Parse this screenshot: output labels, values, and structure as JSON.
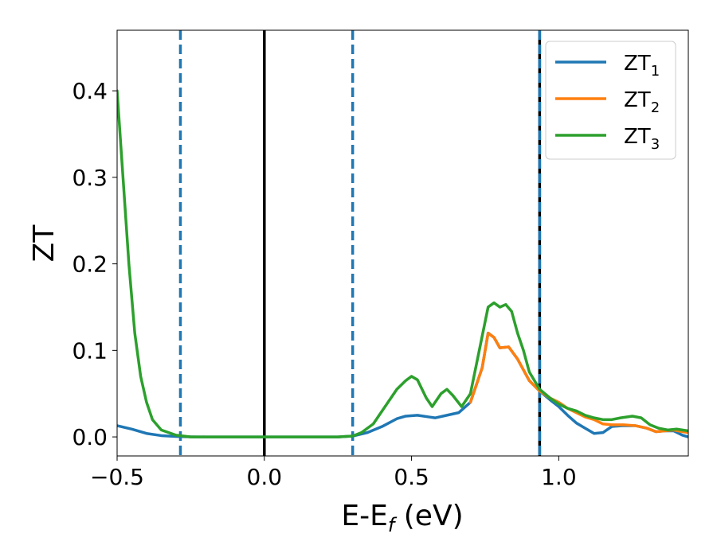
{
  "chart_data": {
    "type": "line",
    "xlabel": {
      "main": "E-E",
      "sub": "f",
      "tail": " (eV)"
    },
    "ylabel": "ZT",
    "xlim": [
      -0.5,
      1.44
    ],
    "ylim": [
      -0.022,
      0.47
    ],
    "x_ticks": [
      {
        "value": -0.5,
        "label": "−0.5"
      },
      {
        "value": 0.0,
        "label": "0.0"
      },
      {
        "value": 0.5,
        "label": "0.5"
      },
      {
        "value": 1.0,
        "label": "1.0"
      }
    ],
    "y_ticks": [
      {
        "value": 0.0,
        "label": "0.0"
      },
      {
        "value": 0.1,
        "label": "0.1"
      },
      {
        "value": 0.2,
        "label": "0.2"
      },
      {
        "value": 0.3,
        "label": "0.3"
      },
      {
        "value": 0.4,
        "label": "0.4"
      }
    ],
    "grid": false,
    "legend_position": "top-right",
    "vlines": [
      {
        "x": -0.285,
        "style": "dashed",
        "color": "#1f77b4"
      },
      {
        "x": 0.0,
        "style": "solid",
        "color": "#000000"
      },
      {
        "x": 0.3,
        "style": "dashed",
        "color": "#1f77b4"
      },
      {
        "x": 0.935,
        "style": "solid",
        "color": "#000000"
      },
      {
        "x": 0.935,
        "style": "dashed",
        "color": "#1f77b4"
      }
    ],
    "series": [
      {
        "name": "ZT",
        "sub": "1",
        "color": "#1f77b4",
        "points": [
          [
            -0.5,
            0.013
          ],
          [
            -0.45,
            0.009
          ],
          [
            -0.4,
            0.004
          ],
          [
            -0.35,
            0.0015
          ],
          [
            -0.3,
            0.0005
          ],
          [
            -0.25,
            0.0001
          ],
          [
            -0.2,
            0.0
          ],
          [
            0.0,
            0.0
          ],
          [
            0.25,
            0.0
          ],
          [
            0.3,
            0.001
          ],
          [
            0.35,
            0.005
          ],
          [
            0.4,
            0.012
          ],
          [
            0.45,
            0.021
          ],
          [
            0.48,
            0.024
          ],
          [
            0.52,
            0.025
          ],
          [
            0.56,
            0.023
          ],
          [
            0.58,
            0.022
          ],
          [
            0.62,
            0.025
          ],
          [
            0.66,
            0.028
          ],
          [
            0.7,
            0.04
          ],
          [
            0.74,
            0.08
          ],
          [
            0.76,
            0.12
          ],
          [
            0.78,
            0.115
          ],
          [
            0.8,
            0.103
          ],
          [
            0.83,
            0.104
          ],
          [
            0.86,
            0.09
          ],
          [
            0.9,
            0.065
          ],
          [
            0.935,
            0.053
          ],
          [
            0.97,
            0.043
          ],
          [
            1.0,
            0.035
          ],
          [
            1.03,
            0.025
          ],
          [
            1.06,
            0.016
          ],
          [
            1.09,
            0.01
          ],
          [
            1.12,
            0.004
          ],
          [
            1.15,
            0.005
          ],
          [
            1.18,
            0.012
          ],
          [
            1.22,
            0.013
          ],
          [
            1.26,
            0.013
          ],
          [
            1.3,
            0.01
          ],
          [
            1.33,
            0.006
          ],
          [
            1.36,
            0.007
          ],
          [
            1.39,
            0.007
          ],
          [
            1.42,
            0.002
          ],
          [
            1.44,
            0.0
          ]
        ]
      },
      {
        "name": "ZT",
        "sub": "2",
        "color": "#ff7f0e",
        "points": [
          [
            0.7,
            0.04
          ],
          [
            0.74,
            0.08
          ],
          [
            0.76,
            0.12
          ],
          [
            0.78,
            0.115
          ],
          [
            0.8,
            0.103
          ],
          [
            0.83,
            0.104
          ],
          [
            0.86,
            0.09
          ],
          [
            0.9,
            0.065
          ],
          [
            0.935,
            0.053
          ],
          [
            0.97,
            0.045
          ],
          [
            1.0,
            0.04
          ],
          [
            1.03,
            0.033
          ],
          [
            1.06,
            0.028
          ],
          [
            1.09,
            0.023
          ],
          [
            1.12,
            0.02
          ],
          [
            1.15,
            0.015
          ],
          [
            1.18,
            0.014
          ],
          [
            1.22,
            0.014
          ],
          [
            1.26,
            0.013
          ],
          [
            1.3,
            0.01
          ],
          [
            1.33,
            0.006
          ],
          [
            1.36,
            0.007
          ],
          [
            1.39,
            0.008
          ],
          [
            1.42,
            0.006
          ],
          [
            1.44,
            0.005
          ]
        ]
      },
      {
        "name": "ZT",
        "sub": "3",
        "color": "#2ca02c",
        "points": [
          [
            -0.5,
            0.4
          ],
          [
            -0.48,
            0.3
          ],
          [
            -0.46,
            0.2
          ],
          [
            -0.44,
            0.12
          ],
          [
            -0.42,
            0.07
          ],
          [
            -0.4,
            0.04
          ],
          [
            -0.38,
            0.02
          ],
          [
            -0.35,
            0.008
          ],
          [
            -0.3,
            0.002
          ],
          [
            -0.25,
            0.0
          ],
          [
            0.0,
            0.0
          ],
          [
            0.25,
            0.0
          ],
          [
            0.3,
            0.001
          ],
          [
            0.33,
            0.005
          ],
          [
            0.37,
            0.015
          ],
          [
            0.41,
            0.035
          ],
          [
            0.45,
            0.055
          ],
          [
            0.48,
            0.065
          ],
          [
            0.5,
            0.07
          ],
          [
            0.52,
            0.066
          ],
          [
            0.55,
            0.045
          ],
          [
            0.57,
            0.035
          ],
          [
            0.6,
            0.05
          ],
          [
            0.62,
            0.055
          ],
          [
            0.64,
            0.048
          ],
          [
            0.67,
            0.035
          ],
          [
            0.7,
            0.05
          ],
          [
            0.73,
            0.1
          ],
          [
            0.76,
            0.15
          ],
          [
            0.78,
            0.155
          ],
          [
            0.8,
            0.15
          ],
          [
            0.82,
            0.153
          ],
          [
            0.84,
            0.145
          ],
          [
            0.86,
            0.12
          ],
          [
            0.88,
            0.1
          ],
          [
            0.9,
            0.075
          ],
          [
            0.935,
            0.055
          ],
          [
            0.97,
            0.045
          ],
          [
            1.0,
            0.038
          ],
          [
            1.03,
            0.033
          ],
          [
            1.06,
            0.03
          ],
          [
            1.09,
            0.025
          ],
          [
            1.12,
            0.022
          ],
          [
            1.15,
            0.02
          ],
          [
            1.18,
            0.02
          ],
          [
            1.21,
            0.022
          ],
          [
            1.25,
            0.024
          ],
          [
            1.28,
            0.022
          ],
          [
            1.31,
            0.014
          ],
          [
            1.34,
            0.01
          ],
          [
            1.37,
            0.008
          ],
          [
            1.4,
            0.009
          ],
          [
            1.42,
            0.008
          ],
          [
            1.44,
            0.007
          ]
        ]
      }
    ]
  }
}
